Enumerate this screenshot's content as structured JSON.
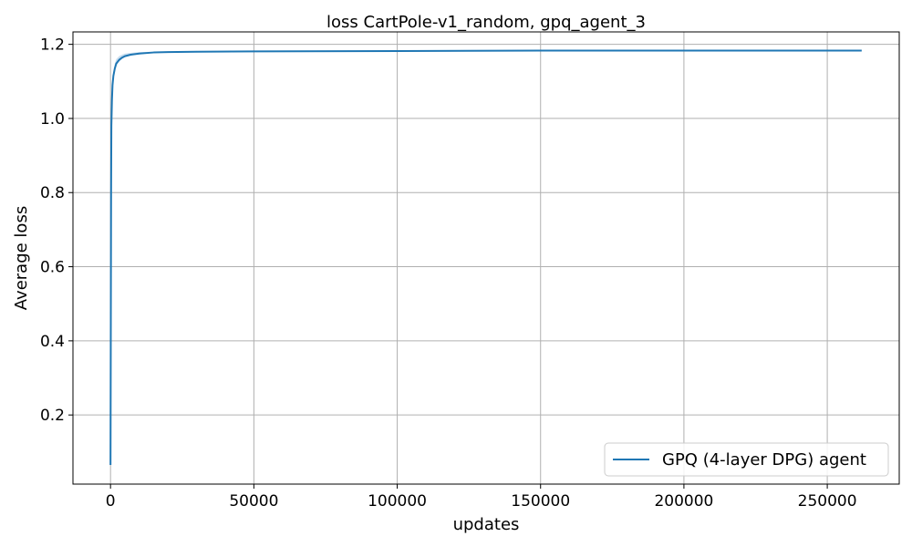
{
  "chart_data": {
    "type": "line",
    "title": "loss CartPole-v1_random, gpq_agent_3",
    "xlabel": "updates",
    "ylabel": "Average loss",
    "xlim": [
      -13100,
      275100
    ],
    "ylim": [
      0.0135,
      1.2335
    ],
    "xticks": [
      0,
      50000,
      100000,
      150000,
      200000,
      250000
    ],
    "xtick_labels": [
      "0",
      "50000",
      "100000",
      "150000",
      "200000",
      "250000"
    ],
    "yticks": [
      0.2,
      0.4,
      0.6,
      0.8,
      1.0,
      1.2
    ],
    "ytick_labels": [
      "0.2",
      "0.4",
      "0.6",
      "0.8",
      "1.0",
      "1.2"
    ],
    "grid": true,
    "legend_position": "lower-right",
    "series": [
      {
        "name": "GPQ (4-layer DPG) agent",
        "color": "#1f77b4",
        "band_color": "#a6c8e4",
        "x": [
          0,
          100,
          200,
          300,
          500,
          700,
          1000,
          1500,
          2000,
          3000,
          4000,
          5000,
          7000,
          10000,
          15000,
          20000,
          30000,
          50000,
          100000,
          150000,
          200000,
          262000
        ],
        "y": [
          0.065,
          0.45,
          0.8,
          0.98,
          1.05,
          1.09,
          1.115,
          1.135,
          1.148,
          1.158,
          1.164,
          1.168,
          1.172,
          1.175,
          1.178,
          1.179,
          1.18,
          1.181,
          1.182,
          1.183,
          1.183,
          1.183
        ],
        "y_low": [
          0.065,
          0.44,
          0.79,
          0.975,
          1.045,
          1.085,
          1.11,
          1.13,
          1.143,
          1.153,
          1.16,
          1.165,
          1.17,
          1.173,
          1.177,
          1.178,
          1.179,
          1.18,
          1.181,
          1.182,
          1.182,
          1.182
        ],
        "y_high": [
          0.065,
          0.46,
          0.81,
          0.985,
          1.055,
          1.095,
          1.125,
          1.148,
          1.16,
          1.168,
          1.172,
          1.175,
          1.177,
          1.179,
          1.18,
          1.181,
          1.181,
          1.182,
          1.183,
          1.184,
          1.184,
          1.184
        ]
      }
    ]
  }
}
